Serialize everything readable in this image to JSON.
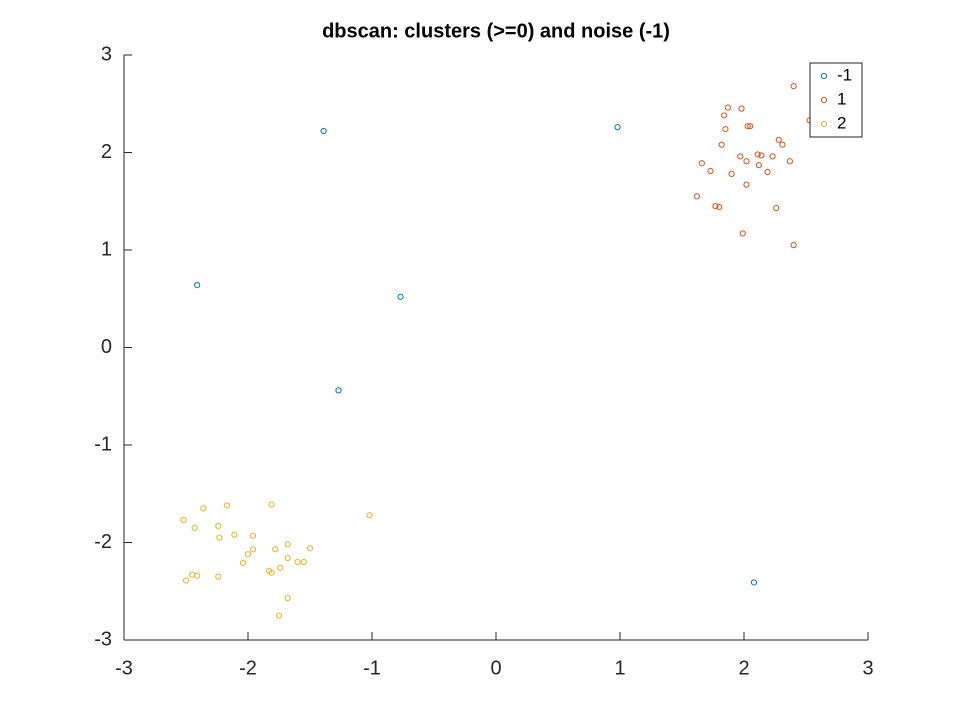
{
  "chart_data": {
    "type": "scatter",
    "title": "dbscan: clusters (>=0) and noise (-1)",
    "xlim": [
      -3,
      3
    ],
    "ylim": [
      -3,
      3
    ],
    "xticks": [
      -3,
      -2,
      -1,
      0,
      1,
      2,
      3
    ],
    "yticks": [
      -3,
      -2,
      -1,
      0,
      1,
      2,
      3
    ],
    "legend": "top-right",
    "series": [
      {
        "name": "-1",
        "color": "#0072bd",
        "x": [
          -1.39,
          -2.41,
          -0.77,
          -1.27,
          0.98,
          2.08
        ],
        "values": [
          2.22,
          0.64,
          0.52,
          -0.44,
          2.26,
          -2.41
        ]
      },
      {
        "name": "1",
        "color": "#d95319",
        "x": [
          2.4,
          1.87,
          1.98,
          1.84,
          2.53,
          1.85,
          2.03,
          2.05,
          1.82,
          2.28,
          2.31,
          2.11,
          2.14,
          1.97,
          2.23,
          2.02,
          2.37,
          1.66,
          2.12,
          1.73,
          1.9,
          2.19,
          2.02,
          1.62,
          1.77,
          1.8,
          2.26,
          1.99,
          2.4
        ],
        "values": [
          2.68,
          2.46,
          2.45,
          2.38,
          2.33,
          2.24,
          2.27,
          2.27,
          2.08,
          2.13,
          2.08,
          1.98,
          1.97,
          1.96,
          1.96,
          1.91,
          1.91,
          1.89,
          1.87,
          1.81,
          1.78,
          1.8,
          1.67,
          1.55,
          1.45,
          1.44,
          1.43,
          1.17,
          1.05
        ]
      },
      {
        "name": "2",
        "color": "#edb120",
        "x": [
          -1.81,
          -2.36,
          -2.17,
          -1.02,
          -2.52,
          -2.43,
          -2.24,
          -2.11,
          -2.23,
          -1.96,
          -1.68,
          -1.5,
          -1.96,
          -1.78,
          -2.0,
          -1.68,
          -1.6,
          -1.55,
          -2.04,
          -1.74,
          -1.83,
          -1.81,
          -2.45,
          -2.41,
          -2.24,
          -2.5,
          -1.68,
          -1.75
        ],
        "values": [
          -1.61,
          -1.65,
          -1.62,
          -1.72,
          -1.77,
          -1.85,
          -1.83,
          -1.92,
          -1.95,
          -1.93,
          -2.02,
          -2.06,
          -2.07,
          -2.07,
          -2.12,
          -2.16,
          -2.2,
          -2.2,
          -2.21,
          -2.26,
          -2.29,
          -2.31,
          -2.33,
          -2.34,
          -2.35,
          -2.39,
          -2.57,
          -2.75
        ]
      }
    ]
  }
}
